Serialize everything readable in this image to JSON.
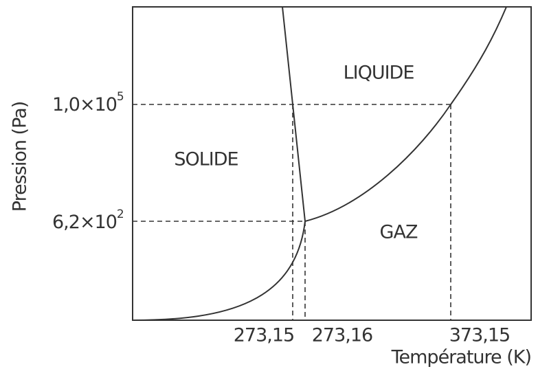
{
  "axes": {
    "y_label": "Pression (Pa)",
    "x_label": "Température (K)"
  },
  "x_ticks": [
    "273,15",
    "273,16",
    "373,15"
  ],
  "y_ticks": [
    {
      "mantissa": "1,0×10",
      "exponent": "5"
    },
    {
      "mantissa": "6,2×10",
      "exponent": "2"
    }
  ],
  "regions": {
    "liquid": "LIQUIDE",
    "solid": "SOLIDE",
    "gas": "GAZ"
  }
}
